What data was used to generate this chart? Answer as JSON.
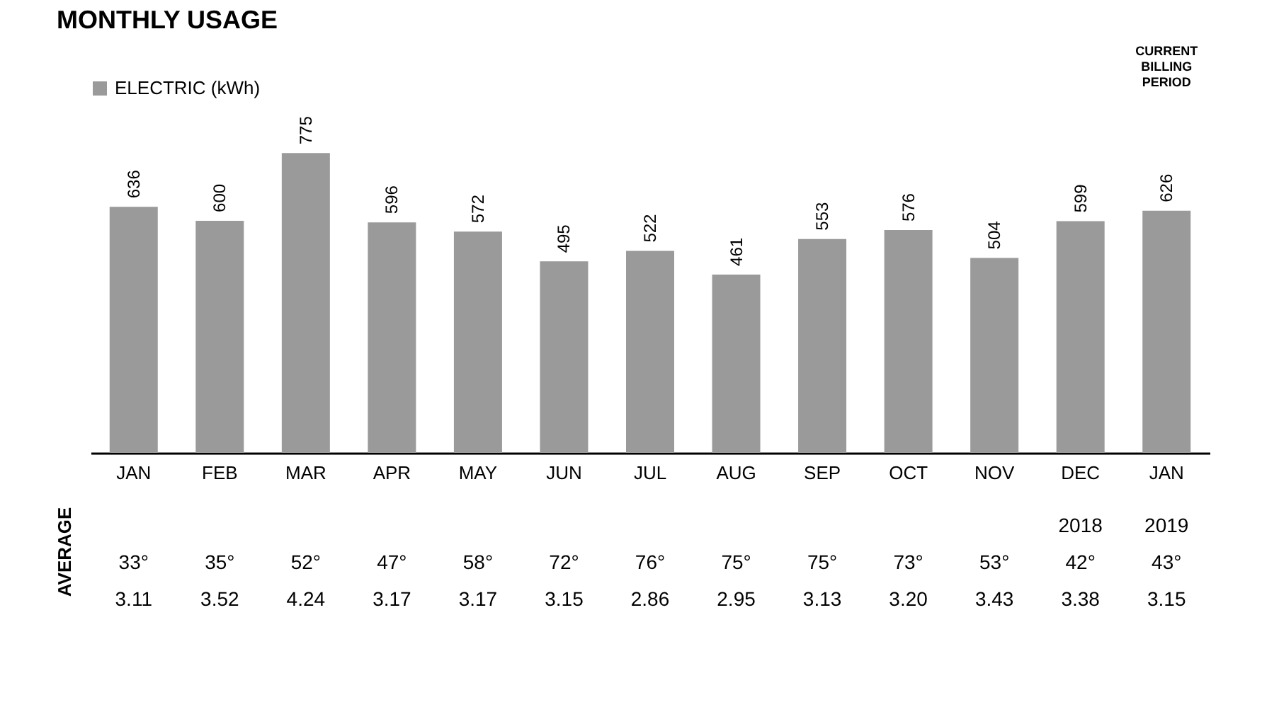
{
  "chart_data": {
    "type": "bar",
    "title": "MONTHLY USAGE",
    "categories": [
      "JAN",
      "FEB",
      "MAR",
      "APR",
      "MAY",
      "JUN",
      "JUL",
      "AUG",
      "SEP",
      "OCT",
      "NOV",
      "DEC",
      "JAN"
    ],
    "series": [
      {
        "name": "ELECTRIC (kWh)",
        "color": "#9a9a9a",
        "values": [
          636,
          600,
          775,
          596,
          572,
          495,
          522,
          461,
          553,
          576,
          504,
          599,
          626
        ]
      }
    ],
    "data_labels": true,
    "legend": "top",
    "grid": false,
    "annotations": [
      "CURRENT BILLING PERIOD",
      "AVERAGE",
      "2018 2019",
      "33° 35° 52° 47° 58° 72° 76° 75° 75° 73° 53° 42° 43°",
      "3.11 3.52 4.24 3.17 3.17 3.15 2.86 2.95 3.13 3.20 3.43 3.38 3.15"
    ]
  }
}
